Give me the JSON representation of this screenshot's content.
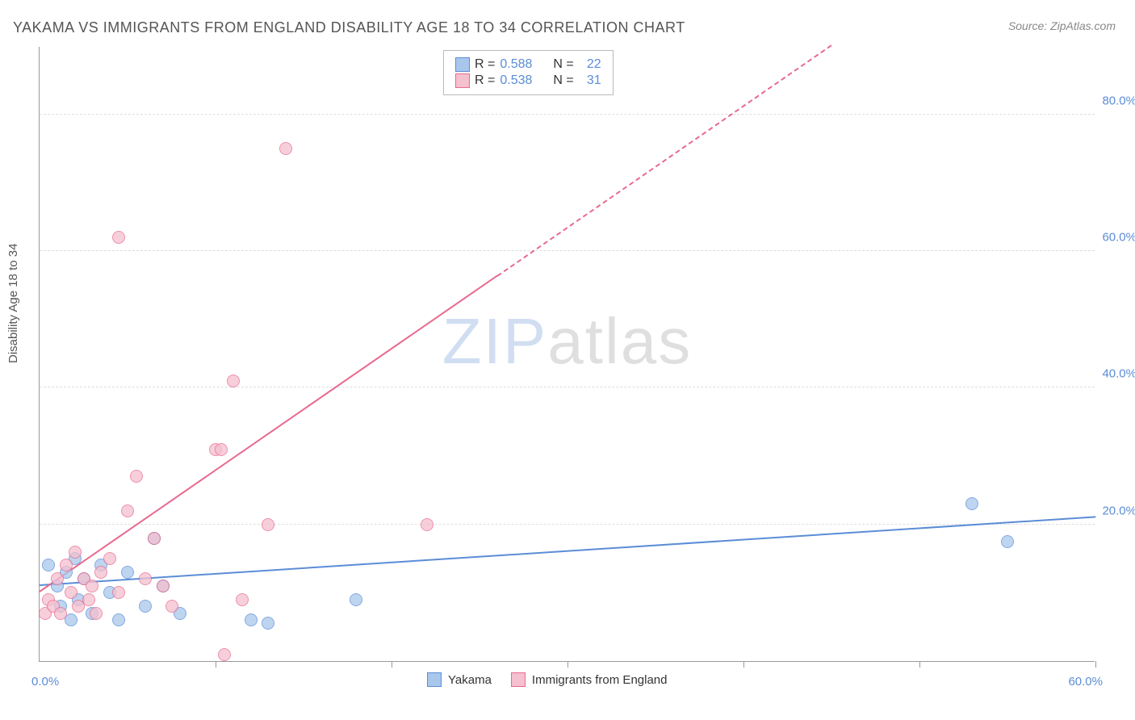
{
  "title": "YAKAMA VS IMMIGRANTS FROM ENGLAND DISABILITY AGE 18 TO 34 CORRELATION CHART",
  "source": "Source: ZipAtlas.com",
  "y_axis_label": "Disability Age 18 to 34",
  "watermark": {
    "part1": "ZIP",
    "part2": "atlas"
  },
  "chart": {
    "type": "scatter",
    "xlim": [
      0,
      60
    ],
    "ylim": [
      0,
      90
    ],
    "x_tick_step": 10,
    "x_label_min": "0.0%",
    "x_label_max": "60.0%",
    "y_ticks": [
      {
        "value": 20,
        "label": "20.0%"
      },
      {
        "value": 40,
        "label": "40.0%"
      },
      {
        "value": 60,
        "label": "60.0%"
      },
      {
        "value": 80,
        "label": "80.0%"
      }
    ],
    "background_color": "#ffffff",
    "grid_color": "#dddddd",
    "axis_color": "#999999",
    "title_color": "#555555",
    "tick_label_color_blue": "#5b8dd6",
    "point_radius": 8,
    "series": [
      {
        "name": "Yakama",
        "color_fill": "#a9c7ec",
        "color_stroke": "#5b8dd6",
        "R": "0.588",
        "N": "22",
        "trend": {
          "x1": 0,
          "y1": 11,
          "x2": 60,
          "y2": 21,
          "solid_to_x": 60
        },
        "points": [
          [
            0.5,
            14
          ],
          [
            1,
            11
          ],
          [
            1.2,
            8
          ],
          [
            1.5,
            13
          ],
          [
            1.8,
            6
          ],
          [
            2,
            15
          ],
          [
            2.2,
            9
          ],
          [
            2.5,
            12
          ],
          [
            3,
            7
          ],
          [
            3.5,
            14
          ],
          [
            4,
            10
          ],
          [
            4.5,
            6
          ],
          [
            5,
            13
          ],
          [
            6,
            8
          ],
          [
            6.5,
            18
          ],
          [
            7,
            11
          ],
          [
            8,
            7
          ],
          [
            12,
            6
          ],
          [
            13,
            5.5
          ],
          [
            18,
            9
          ],
          [
            53,
            23
          ],
          [
            55,
            17.5
          ]
        ]
      },
      {
        "name": "Immigrants from England",
        "color_fill": "#f5c0cf",
        "color_stroke": "#e86a8e",
        "R": "0.538",
        "N": "31",
        "trend": {
          "x1": 0,
          "y1": 10,
          "x2": 45,
          "y2": 90,
          "solid_to_x": 26
        },
        "points": [
          [
            0.3,
            7
          ],
          [
            0.5,
            9
          ],
          [
            0.8,
            8
          ],
          [
            1,
            12
          ],
          [
            1.2,
            7
          ],
          [
            1.5,
            14
          ],
          [
            1.8,
            10
          ],
          [
            2,
            16
          ],
          [
            2.2,
            8
          ],
          [
            2.5,
            12
          ],
          [
            2.8,
            9
          ],
          [
            3,
            11
          ],
          [
            3.2,
            7
          ],
          [
            3.5,
            13
          ],
          [
            4,
            15
          ],
          [
            4.5,
            10
          ],
          [
            5,
            22
          ],
          [
            5.5,
            27
          ],
          [
            6,
            12
          ],
          [
            6.5,
            18
          ],
          [
            7,
            11
          ],
          [
            7.5,
            8
          ],
          [
            4.5,
            62
          ],
          [
            10,
            31
          ],
          [
            10.3,
            31
          ],
          [
            10.5,
            1
          ],
          [
            11,
            41
          ],
          [
            13,
            20
          ],
          [
            14,
            75
          ],
          [
            22,
            20
          ],
          [
            11.5,
            9
          ]
        ]
      }
    ]
  },
  "legend_top": {
    "rows": [
      {
        "swatch_fill": "#a9c7ec",
        "swatch_stroke": "#5b8dd6",
        "r_label": "R =",
        "r_value": "0.588",
        "n_label": "N =",
        "n_value": "22"
      },
      {
        "swatch_fill": "#f5c0cf",
        "swatch_stroke": "#e86a8e",
        "r_label": "R =",
        "r_value": "0.538",
        "n_label": "N =",
        "n_value": "31"
      }
    ]
  },
  "legend_bottom": [
    {
      "swatch_fill": "#a9c7ec",
      "swatch_stroke": "#5b8dd6",
      "label": "Yakama"
    },
    {
      "swatch_fill": "#f5c0cf",
      "swatch_stroke": "#e86a8e",
      "label": "Immigrants from England"
    }
  ]
}
